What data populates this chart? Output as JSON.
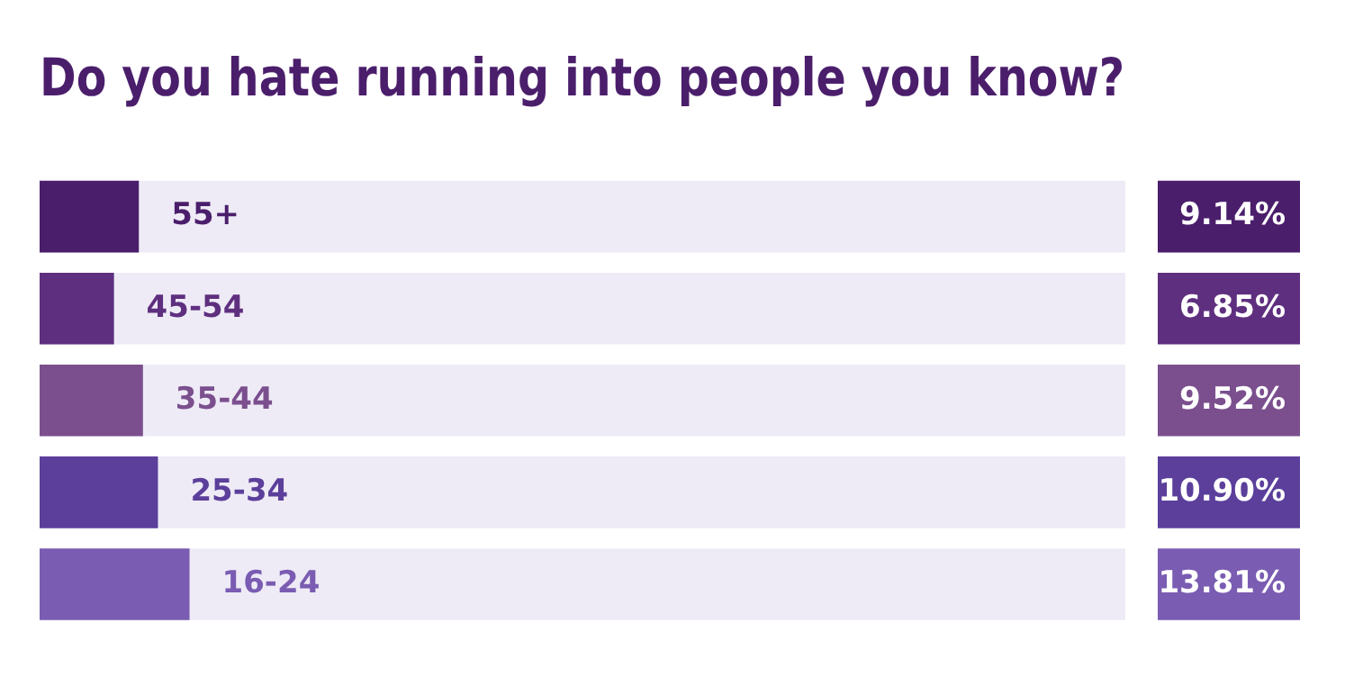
{
  "chart_data": {
    "type": "bar",
    "orientation": "horizontal",
    "title": "Do you hate running into people you know?",
    "categories": [
      "55+",
      "45-54",
      "35-44",
      "25-34",
      "16-24"
    ],
    "values": [
      9.14,
      6.85,
      9.52,
      10.9,
      13.81
    ],
    "value_labels": [
      "9.14%",
      "6.85%",
      "9.52%",
      "10.90%",
      "13.81%"
    ],
    "colors": [
      "#4b1e6c",
      "#5f2f7f",
      "#7b4f8e",
      "#5b3f9b",
      "#7a5cb2"
    ],
    "xlim": [
      0,
      100
    ],
    "legend": false
  }
}
